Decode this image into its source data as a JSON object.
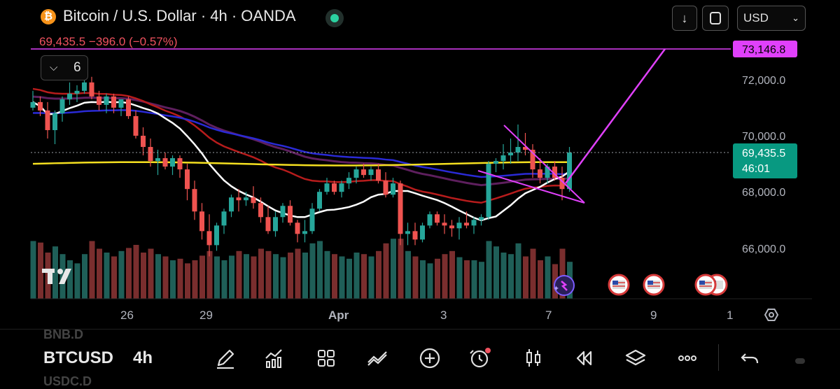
{
  "header": {
    "logo_glyph": "₿",
    "symbol_title": "Bitcoin / U.S. Dollar · 4h · OANDA",
    "price_change_line": "69,435.5  −396.0 (−0.57%)",
    "currency": "USD",
    "indicator_count": "6"
  },
  "price_axis": {
    "labels": [
      "72,000.0",
      "70,000.0",
      "68,000.0",
      "66,000.0"
    ],
    "current_price": "69,435.5",
    "countdown": "46:01",
    "target_level": "73,146.8"
  },
  "time_axis": {
    "labels": [
      "26",
      "29",
      "Apr",
      "3",
      "7",
      "9",
      "1"
    ]
  },
  "colors": {
    "up": "#26a69a",
    "down": "#ef5350",
    "target_line": "#e040fb",
    "current_price_bg": "#089981",
    "ma_white": "#ffffff",
    "ma_yellow": "#f5e020",
    "ma_blue": "#2a2ad6",
    "ma_red": "#b71c1c",
    "ma_purple": "#5e1f5e"
  },
  "candles": [
    [
      71000,
      71600,
      70900,
      71200
    ],
    [
      71200,
      71400,
      70700,
      70900
    ],
    [
      70900,
      71200,
      69900,
      70200
    ],
    [
      70200,
      70900,
      69700,
      70800
    ],
    [
      70800,
      71400,
      70500,
      71300
    ],
    [
      71300,
      71900,
      71100,
      71500
    ],
    [
      71500,
      71800,
      71200,
      71600
    ],
    [
      71600,
      72000,
      71500,
      71900
    ],
    [
      71900,
      72100,
      71300,
      71400
    ],
    [
      71400,
      71600,
      70900,
      71100
    ],
    [
      71100,
      71500,
      70800,
      71400
    ],
    [
      71400,
      71500,
      70800,
      71000
    ],
    [
      71000,
      71300,
      70700,
      71300
    ],
    [
      71300,
      71400,
      70600,
      70700
    ],
    [
      70700,
      70900,
      69900,
      70000
    ],
    [
      70000,
      70300,
      69300,
      69600
    ],
    [
      69600,
      69900,
      68900,
      69100
    ],
    [
      69100,
      69500,
      68600,
      69200
    ],
    [
      69200,
      69400,
      68800,
      68900
    ],
    [
      68900,
      69300,
      68600,
      69200
    ],
    [
      69200,
      69300,
      68500,
      68800
    ],
    [
      68800,
      69000,
      67700,
      68100
    ],
    [
      68100,
      68400,
      67000,
      67300
    ],
    [
      67300,
      67600,
      66300,
      66600
    ],
    [
      66600,
      67200,
      65700,
      66100
    ],
    [
      66100,
      66900,
      65900,
      66800
    ],
    [
      66800,
      67400,
      66500,
      67300
    ],
    [
      67300,
      67900,
      67100,
      67800
    ],
    [
      67800,
      68100,
      67300,
      67700
    ],
    [
      67700,
      68000,
      67500,
      67800
    ],
    [
      67800,
      68200,
      67400,
      67600
    ],
    [
      67600,
      67800,
      66900,
      67100
    ],
    [
      67100,
      67500,
      66500,
      66600
    ],
    [
      66600,
      67300,
      66400,
      67100
    ],
    [
      67100,
      67600,
      66900,
      67500
    ],
    [
      67500,
      67700,
      66800,
      66900
    ],
    [
      66900,
      67000,
      66200,
      66500
    ],
    [
      66500,
      67000,
      66200,
      66600
    ],
    [
      66600,
      67600,
      66500,
      67400
    ],
    [
      67400,
      68100,
      67300,
      68000
    ],
    [
      68000,
      68500,
      67900,
      68300
    ],
    [
      68300,
      68400,
      67900,
      68000
    ],
    [
      68000,
      68400,
      67800,
      68300
    ],
    [
      68300,
      68700,
      68100,
      68500
    ],
    [
      68500,
      68900,
      68300,
      68800
    ],
    [
      68800,
      69000,
      68500,
      68600
    ],
    [
      68600,
      68900,
      68400,
      68800
    ],
    [
      68800,
      69000,
      68300,
      68400
    ],
    [
      68400,
      68700,
      67800,
      67900
    ],
    [
      67900,
      68500,
      67800,
      68300
    ],
    [
      68300,
      68400,
      66100,
      66500
    ],
    [
      66500,
      66900,
      66100,
      66600
    ],
    [
      66600,
      66900,
      66100,
      66300
    ],
    [
      66300,
      66900,
      66200,
      66800
    ],
    [
      66800,
      67300,
      66700,
      67200
    ],
    [
      67200,
      67300,
      66800,
      66900
    ],
    [
      66900,
      67200,
      66500,
      66800
    ],
    [
      66800,
      67000,
      66400,
      66700
    ],
    [
      66700,
      67100,
      66300,
      66900
    ],
    [
      66900,
      67300,
      66700,
      66800
    ],
    [
      66800,
      67100,
      66500,
      67000
    ],
    [
      67000,
      67200,
      66800,
      67100
    ],
    [
      67100,
      69100,
      67000,
      69000
    ],
    [
      69000,
      69200,
      68700,
      69100
    ],
    [
      69100,
      69700,
      68800,
      69300
    ],
    [
      69300,
      69900,
      69000,
      69400
    ],
    [
      69400,
      70400,
      69100,
      69600
    ],
    [
      69600,
      70100,
      69300,
      69500
    ],
    [
      69500,
      69700,
      68500,
      68800
    ],
    [
      68800,
      69200,
      68300,
      68500
    ],
    [
      68500,
      69000,
      68300,
      68900
    ],
    [
      68900,
      69100,
      68400,
      68500
    ],
    [
      68500,
      68900,
      67700,
      68100
    ],
    [
      68100,
      69600,
      68000,
      69400
    ]
  ],
  "volumes": [
    0.75,
    0.73,
    0.6,
    0.68,
    0.58,
    0.5,
    0.46,
    0.58,
    0.75,
    0.65,
    0.6,
    0.55,
    0.62,
    0.66,
    0.7,
    0.6,
    0.65,
    0.58,
    0.55,
    0.5,
    0.52,
    0.46,
    0.5,
    0.56,
    0.62,
    0.55,
    0.5,
    0.56,
    0.62,
    0.58,
    0.55,
    0.65,
    0.62,
    0.58,
    0.54,
    0.6,
    0.65,
    0.6,
    0.72,
    0.75,
    0.62,
    0.58,
    0.55,
    0.52,
    0.6,
    0.58,
    0.55,
    0.62,
    0.72,
    0.78,
    0.78,
    0.62,
    0.55,
    0.5,
    0.46,
    0.52,
    0.58,
    0.62,
    0.54,
    0.5,
    0.5,
    0.48,
    0.75,
    0.68,
    0.6,
    0.58,
    0.72,
    0.55,
    0.65,
    0.5,
    0.55,
    0.45,
    0.65,
    0.48
  ]
}
